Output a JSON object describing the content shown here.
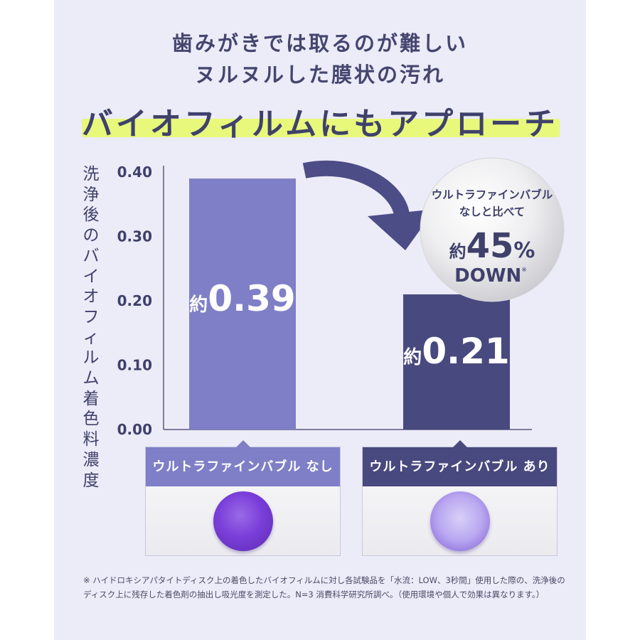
{
  "headline": {
    "line1": "歯みがきでは取るのが難しい",
    "line2": "ヌルヌルした膜状の汚れ",
    "line3": "バイオフィルムにもアプローチ"
  },
  "colors": {
    "bar_without": "#7f7fc7",
    "bar_with": "#48497e",
    "arrow": "#4c4d86",
    "highlight": "#e8f87a"
  },
  "chart_data": {
    "type": "bar",
    "ylabel": "洗浄後のバイオフィルム着色料濃度",
    "ylim": [
      0,
      0.4
    ],
    "y_ticks": [
      "0.40",
      "0.30",
      "0.20",
      "0.10",
      "0.00"
    ],
    "categories": [
      "ウルトラファインバブル なし",
      "ウルトラファインバブル あり"
    ],
    "values": [
      0.39,
      0.21
    ],
    "data_labels": [
      {
        "prefix": "約",
        "value": "0.39"
      },
      {
        "prefix": "約",
        "value": "0.21"
      }
    ],
    "annotation": {
      "line1": "ウルトラファインバブル",
      "line2": "なしと比べて",
      "prefix": "約",
      "number": "45",
      "percent": "%",
      "down": "DOWN",
      "note_mark": "※"
    }
  },
  "footnote": "※ ハイドロキシアパタイトディスク上の着色したバイオフィルムに対し各試験品を「水流：LOW、3秒間」使用した際の、洗浄後のディスク上に残存した着色剤の抽出し吸光度を測定した。N=3 消費科学研究所調べ。（使用環境や個人で効果は異なります。）"
}
